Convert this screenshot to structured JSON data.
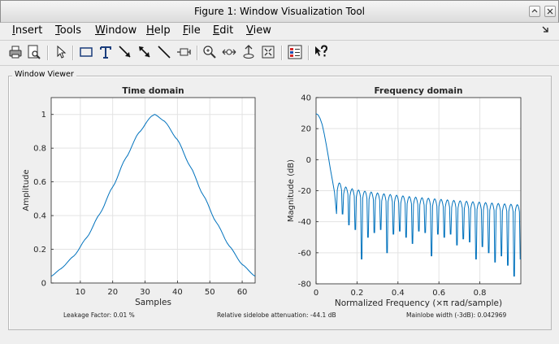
{
  "window": {
    "title": "Figure 1: Window Visualization Tool"
  },
  "menu": {
    "items": [
      "Insert",
      "Tools",
      "Window",
      "Help",
      "File",
      "Edit",
      "View"
    ]
  },
  "toolbar": {
    "buttons": [
      "print-icon",
      "print-preview-icon",
      "select-arrow-icon",
      "rectangle-icon",
      "text-icon",
      "arrow-icon",
      "double-arrow-icon",
      "line-icon",
      "pin-icon",
      "zoom-in-icon",
      "pan-icon",
      "rotate-icon",
      "fit-icon",
      "legend-icon",
      "help-icon"
    ]
  },
  "panel": {
    "title": "Window Viewer"
  },
  "footer": {
    "leakage": "Leakage Factor: 0.01 %",
    "sidelobe": "Relative sidelobe attenuation: -44.1 dB",
    "mainlobe": "Mainlobe width (-3dB): 0.042969"
  },
  "colors": {
    "line": "#0072bd",
    "grid": "#e3e3e3",
    "axes_bg": "#ffffff"
  },
  "chart_data": [
    {
      "type": "line",
      "title": "Time domain",
      "xlabel": "Samples",
      "ylabel": "Amplitude",
      "xlim": [
        1,
        64
      ],
      "ylim": [
        0,
        1.1
      ],
      "xticks": [
        10,
        20,
        30,
        40,
        50,
        60
      ],
      "yticks": [
        0,
        0.2,
        0.4,
        0.6,
        0.8,
        1
      ],
      "ytick_labels": [
        "0",
        "0.2",
        "0.4",
        "0.6",
        "0.8",
        "1"
      ],
      "grid": true,
      "series": [
        {
          "x": [
            1,
            4,
            8,
            12,
            16,
            20,
            24,
            28,
            32,
            33,
            36,
            40,
            44,
            48,
            52,
            56,
            60,
            64
          ],
          "y": [
            0.04,
            0.085,
            0.16,
            0.27,
            0.41,
            0.57,
            0.74,
            0.89,
            0.99,
            1.0,
            0.96,
            0.85,
            0.69,
            0.52,
            0.36,
            0.22,
            0.11,
            0.04
          ]
        }
      ]
    },
    {
      "type": "line",
      "title": "Frequency domain",
      "xlabel": "Normalized Frequency  (×π rad/sample)",
      "ylabel": "Magnitude (dB)",
      "xlim": [
        0,
        1
      ],
      "ylim": [
        -80,
        40
      ],
      "xticks": [
        0,
        0.2,
        0.4,
        0.6,
        0.8
      ],
      "xtick_labels": [
        "0",
        "0.2",
        "0.4",
        "0.6",
        "0.8"
      ],
      "yticks": [
        -80,
        -60,
        -40,
        -20,
        0,
        20,
        40
      ],
      "grid": true,
      "series": [
        {
          "x": [
            0,
            0.01,
            0.02,
            0.03,
            0.04,
            0.05,
            0.06,
            0.07,
            0.08,
            0.09,
            0.1
          ],
          "y": [
            29.6,
            28.9,
            26.5,
            22.5,
            16.5,
            9.5,
            2.0,
            -6.0,
            -13.5,
            -21.0,
            -35.0
          ]
        }
      ],
      "sidelobes": {
        "start": 0.1,
        "count": 29,
        "peak_start_db": -14.5,
        "peak_end_db": -28.5,
        "null_depths_db": [
          -35,
          -42,
          -45,
          -64,
          -50,
          -47,
          -45,
          -60,
          -48,
          -46,
          -50,
          -54,
          -46,
          -47,
          -62,
          -48,
          -50,
          -48,
          -55,
          -51,
          -53,
          -64,
          -56,
          -60,
          -66,
          -62,
          -68,
          -75,
          -64
        ]
      }
    }
  ]
}
